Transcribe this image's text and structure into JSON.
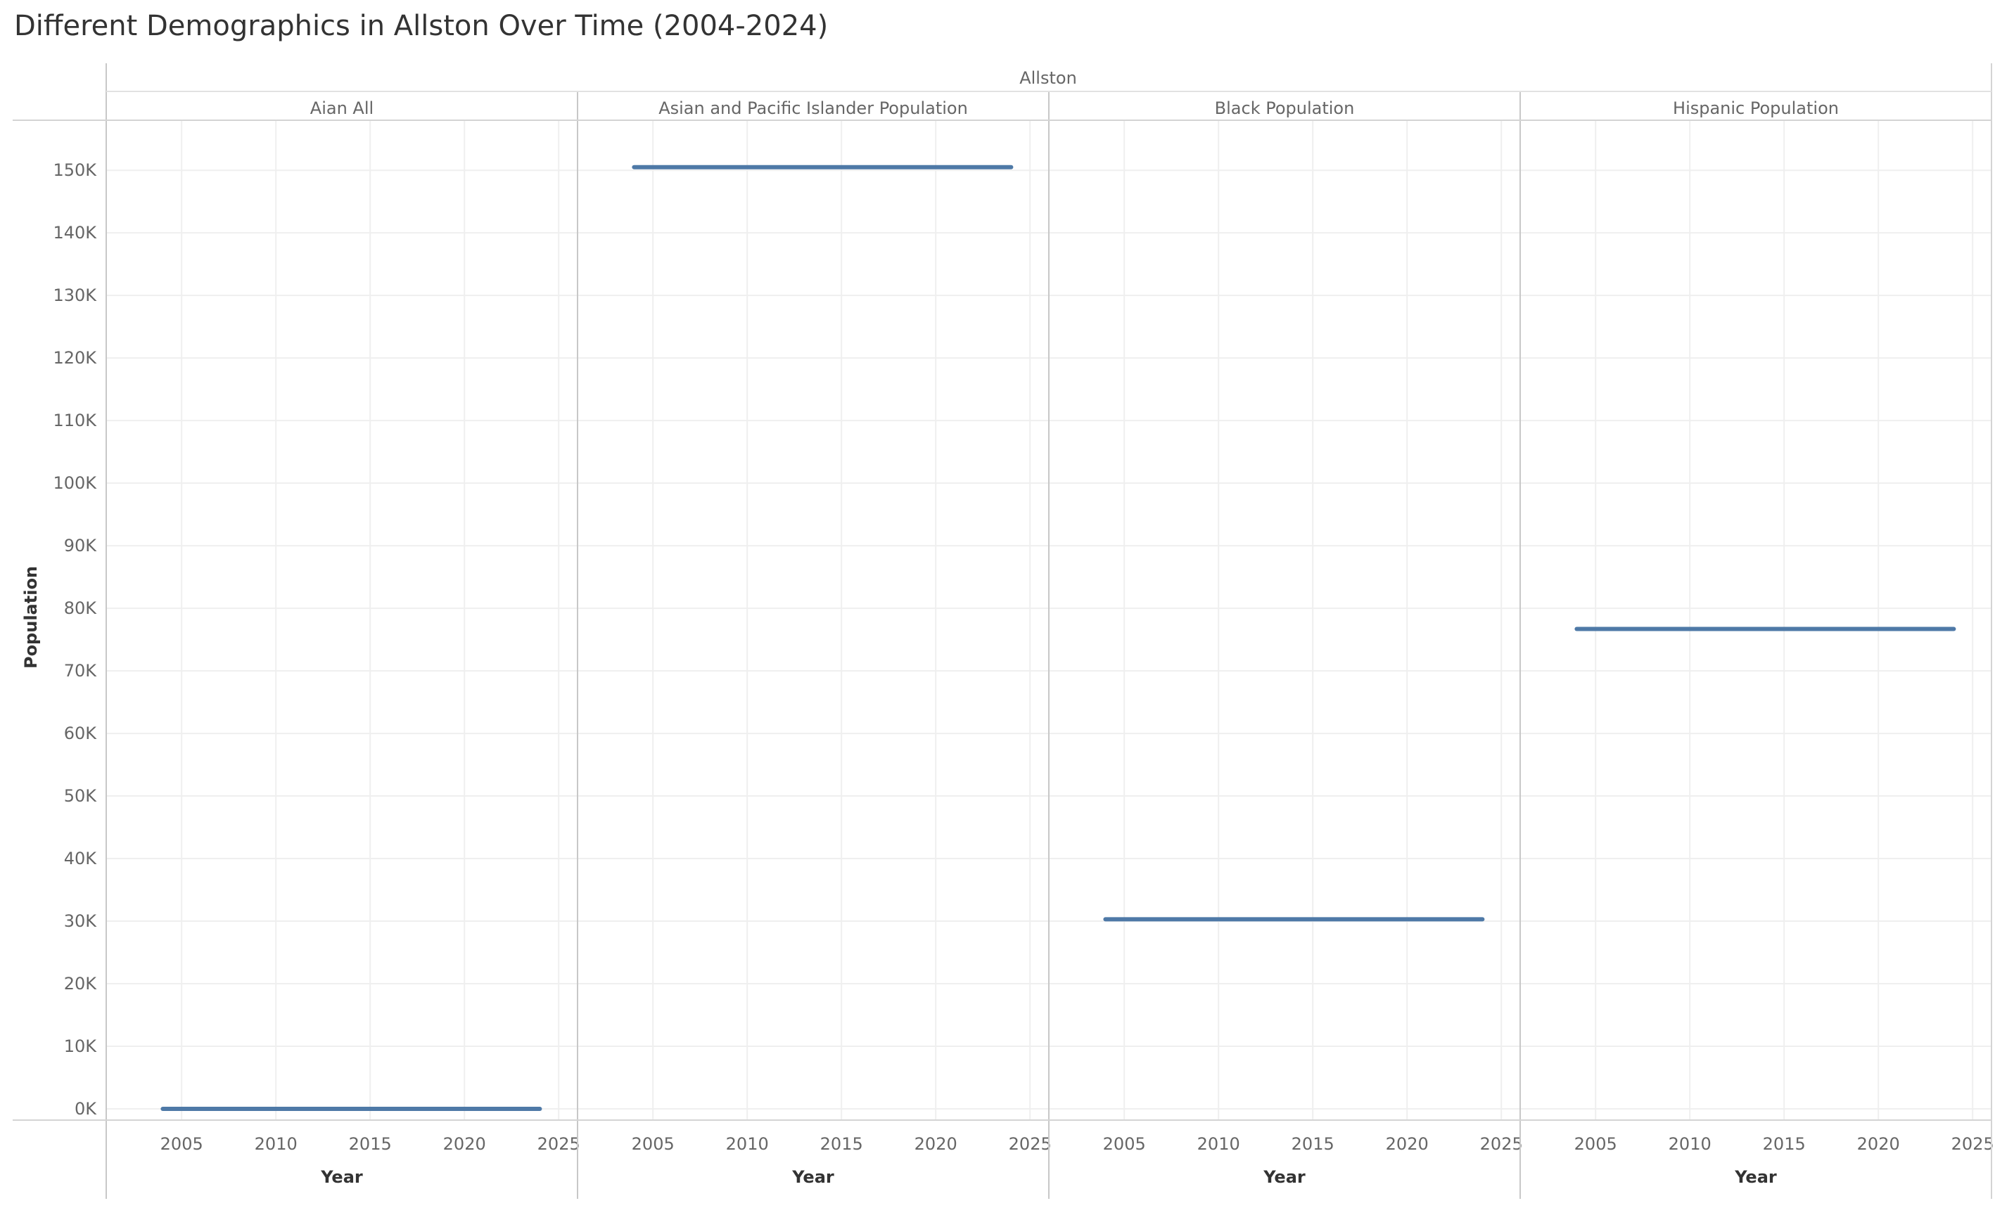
{
  "title": "Different Demographics in Allston Over Time (2004-2024)",
  "chart_data": {
    "type": "line",
    "title": "Different Demographics in Allston Over Time (2004-2024)",
    "group_header": "Allston",
    "xlabel": "Year",
    "ylabel": "Population",
    "xlim": [
      2001,
      2026
    ],
    "xticks": [
      2005,
      2010,
      2015,
      2020,
      2025
    ],
    "ylim": [
      -1800,
      158000
    ],
    "yticks": [
      0,
      10000,
      20000,
      30000,
      40000,
      50000,
      60000,
      70000,
      80000,
      90000,
      100000,
      110000,
      120000,
      130000,
      140000,
      150000
    ],
    "ytick_labels": [
      "0K",
      "10K",
      "20K",
      "30K",
      "40K",
      "50K",
      "60K",
      "70K",
      "80K",
      "90K",
      "100K",
      "110K",
      "120K",
      "130K",
      "140K",
      "150K"
    ],
    "grid": true,
    "line_color": "#4e79a7",
    "panels": [
      {
        "name": "Aian All",
        "x": [
          2004,
          2024
        ],
        "y": [
          0,
          0
        ]
      },
      {
        "name": "Asian and Pacific Islander Population",
        "x": [
          2004,
          2024
        ],
        "y": [
          150500,
          150500
        ]
      },
      {
        "name": "Black Population",
        "x": [
          2004,
          2024
        ],
        "y": [
          30300,
          30300
        ]
      },
      {
        "name": "Hispanic Population",
        "x": [
          2004,
          2024
        ],
        "y": [
          76700,
          76700
        ]
      }
    ]
  }
}
